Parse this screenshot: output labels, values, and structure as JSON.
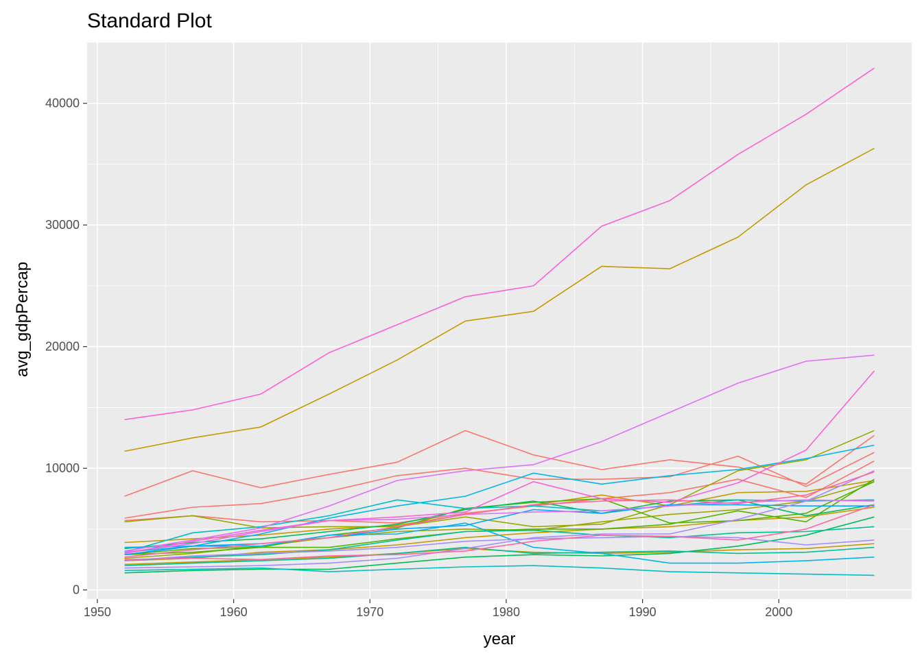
{
  "chart_data": {
    "type": "line",
    "title": "Standard Plot",
    "xlabel": "year",
    "ylabel": "avg_gdpPercap",
    "xlim": [
      1949.25,
      2009.75
    ],
    "ylim": [
      -750,
      45000
    ],
    "x_ticks": [
      1950,
      1960,
      1970,
      1980,
      1990,
      2000
    ],
    "x_tick_labels": [
      "1950",
      "1960",
      "1970",
      "1980",
      "1990",
      "2000"
    ],
    "y_ticks": [
      0,
      10000,
      20000,
      30000,
      40000
    ],
    "y_tick_labels": [
      "0",
      "10000",
      "20000",
      "30000",
      "40000"
    ],
    "grid": true,
    "legend": "none",
    "x": [
      1952,
      1957,
      1962,
      1967,
      1972,
      1977,
      1982,
      1987,
      1992,
      1997,
      2002,
      2007
    ],
    "series": [
      {
        "color": "#F8766D",
        "values": [
          7700,
          9800,
          8400,
          9500,
          10500,
          13100,
          11100,
          9900,
          10700,
          10100,
          8700,
          12700
        ]
      },
      {
        "color": "#F8766D",
        "values": [
          5900,
          6800,
          7100,
          8100,
          9400,
          10000,
          9100,
          9100,
          9300,
          11000,
          8500,
          11300
        ]
      },
      {
        "color": "#F8766D",
        "values": [
          5700,
          6100,
          5600,
          5700,
          5500,
          6300,
          6900,
          7500,
          8000,
          9100,
          7600,
          10600
        ]
      },
      {
        "color": "#C49A00",
        "values": [
          11400,
          12500,
          13400,
          16100,
          18900,
          22100,
          22900,
          26600,
          26400,
          29000,
          33300,
          36300
        ]
      },
      {
        "color": "#C49A00",
        "values": [
          3900,
          4200,
          4500,
          5000,
          5300,
          6200,
          7000,
          7800,
          6900,
          8000,
          8100,
          9000
        ]
      },
      {
        "color": "#C49A00",
        "values": [
          2400,
          2600,
          3100,
          3300,
          3700,
          4300,
          4700,
          5000,
          5200,
          5700,
          6000,
          6800
        ]
      },
      {
        "color": "#C49A00",
        "values": [
          2100,
          2300,
          2500,
          2700,
          3000,
          3400,
          3100,
          3000,
          3100,
          3300,
          3400,
          3800
        ]
      },
      {
        "color": "#99A800",
        "values": [
          5600,
          6100,
          5100,
          5200,
          5200,
          6000,
          5200,
          5400,
          7000,
          9800,
          10700,
          13100
        ]
      },
      {
        "color": "#99A800",
        "values": [
          2600,
          3000,
          3600,
          4300,
          4800,
          5000,
          4900,
          5600,
          6200,
          6600,
          7300,
          8900
        ]
      },
      {
        "color": "#53B400",
        "values": [
          2900,
          3100,
          3500,
          4500,
          5100,
          6700,
          7200,
          7500,
          5500,
          5700,
          6300,
          8900
        ]
      },
      {
        "color": "#53B400",
        "values": [
          2900,
          3400,
          3500,
          3500,
          4200,
          4800,
          5000,
          5000,
          5400,
          6500,
          5600,
          9100
        ]
      },
      {
        "color": "#00BC56",
        "values": [
          3400,
          3900,
          4200,
          4800,
          5400,
          6600,
          7300,
          6300,
          7300,
          7400,
          6100,
          7000
        ]
      },
      {
        "color": "#00BC56",
        "values": [
          1400,
          1600,
          1700,
          1700,
          2200,
          2700,
          2900,
          2800,
          3000,
          3600,
          4500,
          6000
        ]
      },
      {
        "color": "#00C094",
        "values": [
          2000,
          2200,
          2400,
          2600,
          3000,
          3500,
          3000,
          3100,
          3200,
          3000,
          3100,
          3500
        ]
      },
      {
        "color": "#00C094",
        "values": [
          2400,
          2700,
          2900,
          3300,
          4100,
          4800,
          4900,
          4500,
          4300,
          4700,
          4800,
          5200
        ]
      },
      {
        "color": "#00BFC4",
        "values": [
          1600,
          1700,
          1800,
          1500,
          1700,
          1900,
          2000,
          1800,
          1500,
          1400,
          1300,
          1200
        ]
      },
      {
        "color": "#00BFC4",
        "values": [
          3100,
          4700,
          5200,
          6100,
          7400,
          6700,
          6900,
          6500,
          6900,
          7400,
          7300,
          7400
        ]
      },
      {
        "color": "#00B6EB",
        "values": [
          3100,
          3600,
          4600,
          5900,
          6900,
          7700,
          9600,
          8700,
          9400,
          9900,
          10800,
          11900
        ]
      },
      {
        "color": "#00B6EB",
        "values": [
          3500,
          3600,
          3600,
          4500,
          4600,
          5500,
          3500,
          3000,
          2200,
          2200,
          2400,
          2700
        ]
      },
      {
        "color": "#06A4FF",
        "values": [
          2900,
          3600,
          3800,
          4300,
          5000,
          5300,
          6600,
          6300,
          7000,
          7000,
          6900,
          6900
        ]
      },
      {
        "color": "#A58AFF",
        "values": [
          2400,
          2800,
          3000,
          3200,
          3500,
          4000,
          4200,
          4300,
          4400,
          4300,
          3700,
          4100
        ]
      },
      {
        "color": "#A58AFF",
        "values": [
          1800,
          1900,
          2000,
          2200,
          2600,
          3400,
          4300,
          4600,
          4600,
          5800,
          7300,
          9800
        ]
      },
      {
        "color": "#DF70F8",
        "values": [
          3100,
          3800,
          4800,
          5700,
          5800,
          6200,
          6400,
          6500,
          6900,
          7200,
          7400,
          7300
        ]
      },
      {
        "color": "#DF70F8",
        "values": [
          3200,
          4100,
          5100,
          6900,
          9000,
          9800,
          10300,
          12200,
          14600,
          17000,
          18800,
          19300
        ]
      },
      {
        "color": "#FB61D7",
        "values": [
          14000,
          14800,
          16100,
          19500,
          21800,
          24100,
          25000,
          29900,
          32000,
          35800,
          39100,
          42900
        ]
      },
      {
        "color": "#FB61D7",
        "values": [
          3000,
          4000,
          4900,
          5700,
          6000,
          6400,
          8900,
          7500,
          7200,
          8800,
          11500,
          18000
        ]
      },
      {
        "color": "#FF67A4",
        "values": [
          2700,
          3300,
          3800,
          4300,
          5200,
          6200,
          7000,
          7300,
          7400,
          7100,
          7800,
          9700
        ]
      },
      {
        "color": "#FF67A4",
        "values": [
          2500,
          2600,
          2500,
          2800,
          2900,
          3200,
          4000,
          4500,
          4400,
          4100,
          5000,
          7000
        ]
      }
    ]
  }
}
